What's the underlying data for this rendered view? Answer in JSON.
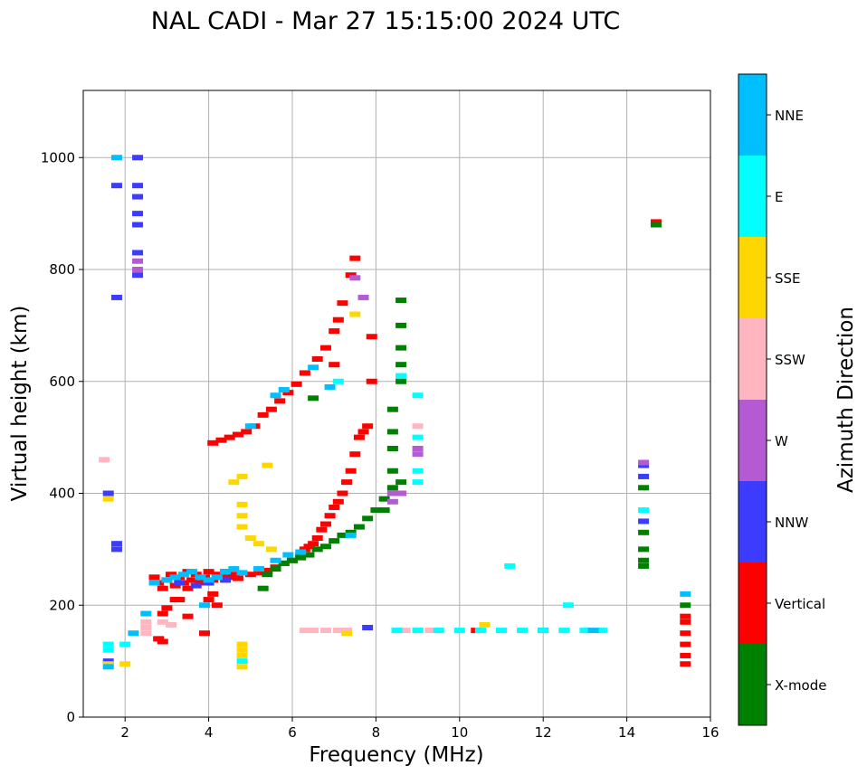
{
  "chart_data": {
    "type": "scatter",
    "title": "NAL CADI - Mar 27 15:15:00 2024 UTC",
    "xlabel": "Frequency (MHz)",
    "ylabel": "Virtual height (km)",
    "xlim": [
      1.0,
      16.0
    ],
    "ylim": [
      0,
      1120
    ],
    "xticks": [
      2,
      4,
      6,
      8,
      10,
      12,
      14,
      16
    ],
    "yticks": [
      0,
      200,
      400,
      600,
      800,
      1000
    ],
    "grid": true,
    "colorbar": {
      "label": "Azimuth Direction",
      "categories": [
        {
          "name": "X-mode",
          "color": "#008000"
        },
        {
          "name": "Vertical",
          "color": "#ff0000"
        },
        {
          "name": "NNW",
          "color": "#3c3cff"
        },
        {
          "name": "W",
          "color": "#b45ad2"
        },
        {
          "name": "SSW",
          "color": "#ffb6c1"
        },
        {
          "name": "SSE",
          "color": "#ffd700"
        },
        {
          "name": "E",
          "color": "#00ffff"
        },
        {
          "name": "NNE",
          "color": "#00bfff"
        }
      ]
    },
    "series": [
      {
        "name": "Vertical",
        "color": "#ff0000",
        "points": [
          [
            2.7,
            250
          ],
          [
            2.8,
            240
          ],
          [
            2.9,
            230
          ],
          [
            3.0,
            245
          ],
          [
            3.1,
            255
          ],
          [
            3.2,
            235
          ],
          [
            3.3,
            250
          ],
          [
            3.4,
            240
          ],
          [
            3.5,
            260
          ],
          [
            3.6,
            245
          ],
          [
            3.7,
            255
          ],
          [
            3.8,
            240
          ],
          [
            3.9,
            250
          ],
          [
            4.0,
            260
          ],
          [
            4.1,
            245
          ],
          [
            4.2,
            255
          ],
          [
            4.3,
            250
          ],
          [
            4.4,
            260
          ],
          [
            4.5,
            250
          ],
          [
            4.6,
            255
          ],
          [
            4.7,
            248
          ],
          [
            4.1,
            220
          ],
          [
            4.0,
            210
          ],
          [
            3.5,
            230
          ],
          [
            3.2,
            210
          ],
          [
            3.0,
            195
          ],
          [
            2.9,
            185
          ],
          [
            2.8,
            140
          ],
          [
            2.9,
            135
          ],
          [
            3.9,
            150
          ],
          [
            4.2,
            200
          ],
          [
            5.0,
            255
          ],
          [
            5.2,
            258
          ],
          [
            5.4,
            262
          ],
          [
            5.6,
            268
          ],
          [
            5.8,
            275
          ],
          [
            6.0,
            280
          ],
          [
            6.2,
            290
          ],
          [
            6.3,
            300
          ],
          [
            6.4,
            305
          ],
          [
            6.5,
            310
          ],
          [
            6.6,
            320
          ],
          [
            6.7,
            335
          ],
          [
            6.8,
            345
          ],
          [
            6.9,
            360
          ],
          [
            7.0,
            375
          ],
          [
            7.1,
            385
          ],
          [
            7.2,
            400
          ],
          [
            7.3,
            420
          ],
          [
            7.4,
            440
          ],
          [
            7.5,
            470
          ],
          [
            7.6,
            500
          ],
          [
            7.7,
            510
          ],
          [
            7.8,
            520
          ],
          [
            4.1,
            490
          ],
          [
            4.3,
            495
          ],
          [
            4.5,
            500
          ],
          [
            4.7,
            505
          ],
          [
            4.9,
            510
          ],
          [
            5.1,
            520
          ],
          [
            5.3,
            540
          ],
          [
            5.5,
            550
          ],
          [
            5.7,
            565
          ],
          [
            5.9,
            580
          ],
          [
            6.1,
            595
          ],
          [
            6.3,
            615
          ],
          [
            6.6,
            640
          ],
          [
            6.8,
            660
          ],
          [
            7.0,
            690
          ],
          [
            7.1,
            710
          ],
          [
            7.2,
            740
          ],
          [
            7.4,
            790
          ],
          [
            7.5,
            820
          ],
          [
            7.9,
            600
          ],
          [
            7.9,
            680
          ],
          [
            14.7,
            885
          ],
          [
            15.4,
            180
          ],
          [
            15.4,
            170
          ],
          [
            15.4,
            150
          ],
          [
            15.4,
            130
          ],
          [
            15.4,
            110
          ],
          [
            15.4,
            95
          ],
          [
            12.0,
            155
          ],
          [
            10.4,
            155
          ],
          [
            7.0,
            630
          ],
          [
            3.3,
            210
          ],
          [
            3.5,
            180
          ]
        ]
      },
      {
        "name": "X-mode",
        "color": "#008000",
        "points": [
          [
            5.4,
            255
          ],
          [
            5.6,
            265
          ],
          [
            5.8,
            275
          ],
          [
            6.0,
            280
          ],
          [
            6.2,
            285
          ],
          [
            6.4,
            290
          ],
          [
            6.6,
            300
          ],
          [
            6.8,
            305
          ],
          [
            7.0,
            315
          ],
          [
            7.2,
            325
          ],
          [
            7.4,
            330
          ],
          [
            7.6,
            340
          ],
          [
            7.8,
            355
          ],
          [
            8.0,
            370
          ],
          [
            8.2,
            390
          ],
          [
            8.4,
            410
          ],
          [
            8.6,
            420
          ],
          [
            8.4,
            440
          ],
          [
            8.4,
            480
          ],
          [
            8.4,
            510
          ],
          [
            8.4,
            550
          ],
          [
            8.6,
            600
          ],
          [
            8.6,
            630
          ],
          [
            8.6,
            660
          ],
          [
            8.6,
            700
          ],
          [
            8.6,
            745
          ],
          [
            8.2,
            370
          ],
          [
            14.4,
            270
          ],
          [
            14.4,
            280
          ],
          [
            14.4,
            300
          ],
          [
            14.4,
            330
          ],
          [
            14.4,
            410
          ],
          [
            15.4,
            200
          ],
          [
            14.7,
            880
          ],
          [
            6.5,
            570
          ],
          [
            5.3,
            230
          ]
        ]
      },
      {
        "name": "NNW",
        "color": "#3c3cff",
        "points": [
          [
            2.3,
            1000
          ],
          [
            2.3,
            950
          ],
          [
            2.3,
            930
          ],
          [
            2.3,
            900
          ],
          [
            2.3,
            880
          ],
          [
            2.3,
            830
          ],
          [
            2.3,
            790
          ],
          [
            1.8,
            750
          ],
          [
            1.6,
            400
          ],
          [
            1.8,
            310
          ],
          [
            1.8,
            300
          ],
          [
            1.8,
            950
          ],
          [
            3.3,
            240
          ],
          [
            3.7,
            235
          ],
          [
            4.0,
            240
          ],
          [
            4.4,
            245
          ],
          [
            14.4,
            450
          ],
          [
            14.4,
            430
          ],
          [
            14.4,
            350
          ],
          [
            7.8,
            160
          ],
          [
            1.6,
            100
          ]
        ]
      },
      {
        "name": "W",
        "color": "#b45ad2",
        "points": [
          [
            9.0,
            470
          ],
          [
            9.0,
            480
          ],
          [
            8.6,
            400
          ],
          [
            8.4,
            400
          ],
          [
            8.4,
            385
          ],
          [
            2.3,
            800
          ],
          [
            2.3,
            815
          ],
          [
            14.4,
            455
          ],
          [
            7.7,
            750
          ],
          [
            7.5,
            785
          ]
        ]
      },
      {
        "name": "SSW",
        "color": "#ffb6c1",
        "points": [
          [
            6.3,
            155
          ],
          [
            6.5,
            155
          ],
          [
            6.8,
            155
          ],
          [
            7.1,
            155
          ],
          [
            7.3,
            155
          ],
          [
            8.5,
            155
          ],
          [
            8.7,
            155
          ],
          [
            9.0,
            155
          ],
          [
            9.3,
            155
          ],
          [
            9.5,
            155
          ],
          [
            2.5,
            160
          ],
          [
            2.5,
            150
          ],
          [
            2.5,
            170
          ],
          [
            1.5,
            460
          ],
          [
            9.0,
            520
          ],
          [
            2.9,
            170
          ],
          [
            3.1,
            165
          ]
        ]
      },
      {
        "name": "SSE",
        "color": "#ffd700",
        "points": [
          [
            4.8,
            90
          ],
          [
            4.8,
            110
          ],
          [
            4.8,
            120
          ],
          [
            4.8,
            130
          ],
          [
            4.8,
            340
          ],
          [
            4.8,
            360
          ],
          [
            4.8,
            380
          ],
          [
            4.8,
            430
          ],
          [
            4.6,
            420
          ],
          [
            5.0,
            320
          ],
          [
            5.2,
            310
          ],
          [
            5.4,
            450
          ],
          [
            1.6,
            390
          ],
          [
            1.6,
            95
          ],
          [
            2.0,
            95
          ],
          [
            7.3,
            150
          ],
          [
            7.5,
            720
          ],
          [
            10.6,
            165
          ],
          [
            5.5,
            300
          ]
        ]
      },
      {
        "name": "E",
        "color": "#00ffff",
        "points": [
          [
            8.5,
            155
          ],
          [
            9.0,
            155
          ],
          [
            9.5,
            155
          ],
          [
            10.0,
            155
          ],
          [
            10.5,
            155
          ],
          [
            11.0,
            155
          ],
          [
            11.5,
            155
          ],
          [
            12.0,
            155
          ],
          [
            12.5,
            155
          ],
          [
            13.0,
            155
          ],
          [
            13.4,
            155
          ],
          [
            9.0,
            500
          ],
          [
            9.0,
            440
          ],
          [
            9.0,
            420
          ],
          [
            9.0,
            575
          ],
          [
            11.2,
            270
          ],
          [
            12.6,
            200
          ],
          [
            4.8,
            100
          ],
          [
            1.6,
            130
          ],
          [
            1.6,
            120
          ],
          [
            2.0,
            130
          ],
          [
            14.4,
            370
          ],
          [
            7.1,
            600
          ],
          [
            8.6,
            610
          ]
        ]
      },
      {
        "name": "NNE",
        "color": "#00bfff",
        "points": [
          [
            3.0,
            245
          ],
          [
            3.2,
            250
          ],
          [
            3.4,
            255
          ],
          [
            3.6,
            260
          ],
          [
            3.8,
            250
          ],
          [
            4.0,
            245
          ],
          [
            4.2,
            250
          ],
          [
            4.4,
            260
          ],
          [
            4.6,
            265
          ],
          [
            4.8,
            258
          ],
          [
            5.2,
            265
          ],
          [
            5.6,
            280
          ],
          [
            5.9,
            290
          ],
          [
            6.2,
            295
          ],
          [
            5.0,
            520
          ],
          [
            5.6,
            575
          ],
          [
            5.8,
            585
          ],
          [
            6.5,
            625
          ],
          [
            6.9,
            590
          ],
          [
            13.2,
            155
          ],
          [
            15.4,
            220
          ],
          [
            2.5,
            185
          ],
          [
            2.2,
            150
          ],
          [
            1.6,
            90
          ],
          [
            1.8,
            1000
          ],
          [
            2.7,
            240
          ],
          [
            7.4,
            325
          ],
          [
            3.9,
            200
          ]
        ]
      }
    ]
  }
}
